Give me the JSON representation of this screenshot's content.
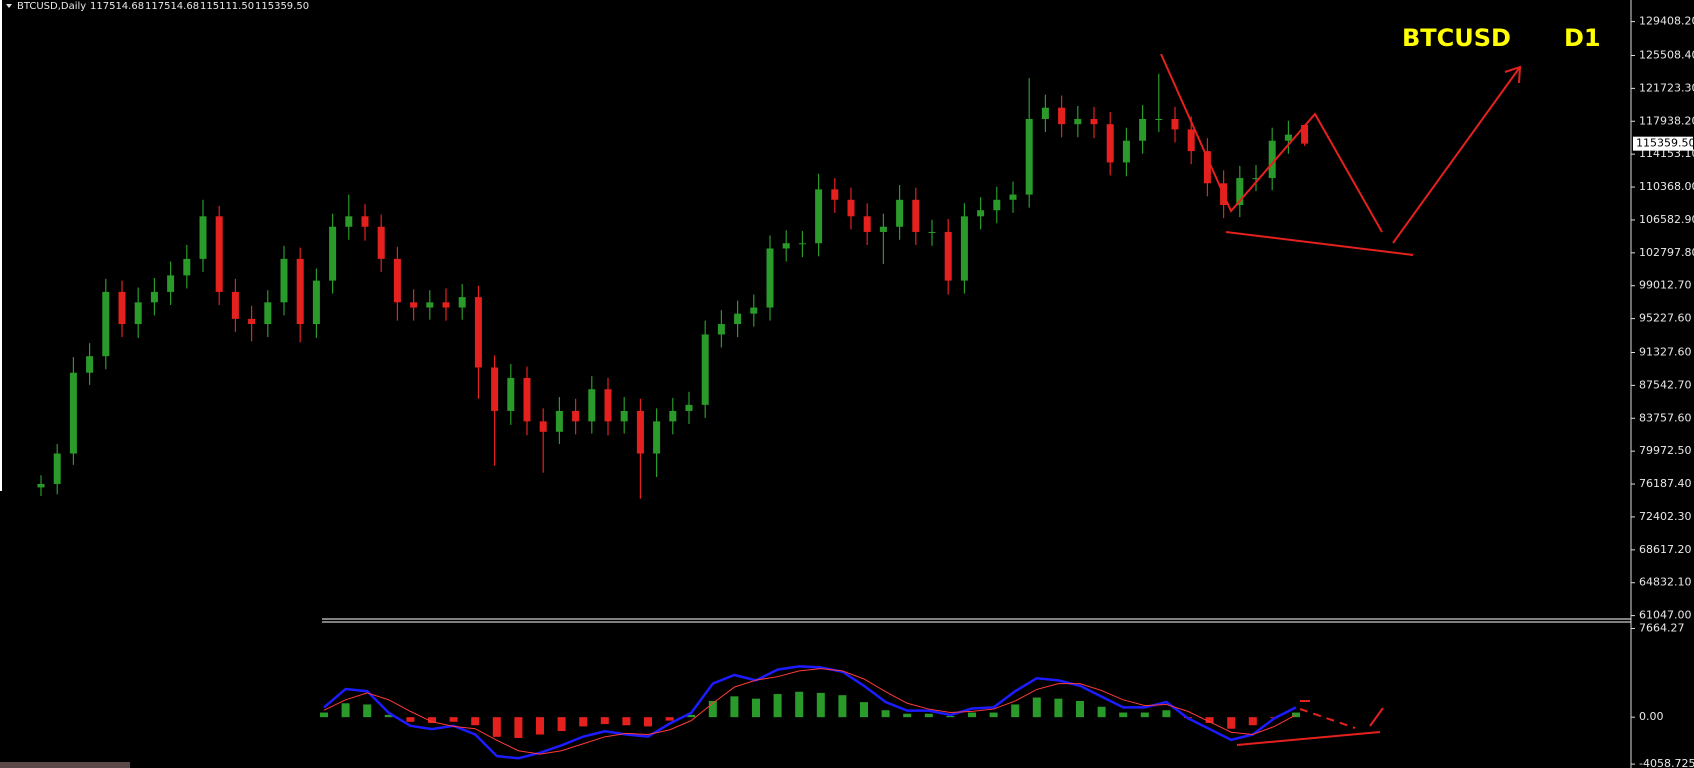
{
  "chart_data": [
    {
      "type": "candlestick",
      "info_bar": {
        "symbol": "BTCUSD,Daily",
        "ohlc": [
          "117514.68",
          "117514.68",
          "115111.50",
          "115359.50"
        ]
      },
      "annotations": [
        "BTCUSD",
        "D1"
      ],
      "up_color": "#2a9a2a",
      "down_color": "#e4211e",
      "open": [
        75800,
        76200,
        79700,
        89000,
        90900,
        98300,
        94600,
        97100,
        98300,
        100200,
        102100,
        107000,
        98300,
        95200,
        94600,
        97100,
        102100,
        94600,
        99600,
        105800,
        107000,
        105800,
        102100,
        97100,
        96500,
        97100,
        96500,
        97700,
        89600,
        84600,
        88400,
        83400,
        82200,
        84600,
        83400,
        87100,
        83400,
        84600,
        79700,
        83400,
        84600,
        85300,
        93400,
        94600,
        95800,
        96500,
        103300,
        103900,
        103900,
        110100,
        108900,
        107000,
        105200,
        105800,
        108900,
        105200,
        105200,
        99600,
        107000,
        107700,
        108900,
        109500,
        118200,
        119500,
        117600,
        118200,
        117600,
        113200,
        115700,
        118200,
        118200,
        117000,
        114500,
        110800,
        108300,
        111400,
        111400,
        115700,
        117514.68
      ],
      "high": [
        77200,
        80800,
        90800,
        92400,
        99800,
        99600,
        98800,
        99900,
        101800,
        103700,
        108900,
        108200,
        99800,
        96700,
        98500,
        103600,
        103400,
        101000,
        107300,
        109500,
        108400,
        107200,
        103500,
        98600,
        98500,
        98700,
        99200,
        99000,
        91000,
        90000,
        89700,
        84900,
        86200,
        86000,
        88600,
        88400,
        86200,
        86000,
        84900,
        86100,
        86800,
        95000,
        96200,
        97300,
        98000,
        104800,
        105400,
        105300,
        111900,
        111400,
        110300,
        108500,
        107300,
        110600,
        110300,
        106600,
        106700,
        108500,
        109200,
        110400,
        111000,
        122900,
        121000,
        120900,
        119700,
        119600,
        119000,
        117200,
        119800,
        123400,
        119600,
        118500,
        116000,
        112300,
        112800,
        112900,
        117200,
        118000,
        117514.68
      ],
      "low": [
        74800,
        75000,
        78400,
        87600,
        89400,
        93100,
        93000,
        95600,
        96800,
        98700,
        100600,
        96800,
        93700,
        92600,
        93100,
        95600,
        92500,
        93000,
        98100,
        104300,
        104200,
        100600,
        95000,
        95000,
        95100,
        95000,
        95100,
        86000,
        78300,
        83000,
        81800,
        77500,
        80800,
        81900,
        82000,
        81800,
        82000,
        74500,
        77000,
        81900,
        83100,
        83800,
        91900,
        93100,
        94300,
        95000,
        101800,
        102300,
        102400,
        107400,
        105500,
        103700,
        101500,
        104300,
        103700,
        103600,
        98000,
        98100,
        105500,
        106200,
        107400,
        108000,
        116700,
        116100,
        116100,
        116000,
        111700,
        111600,
        114200,
        116700,
        115500,
        113000,
        109300,
        106800,
        106900,
        109900,
        110000,
        114200,
        115111.5
      ],
      "close": [
        76200,
        79700,
        89000,
        90900,
        98300,
        94600,
        97100,
        98300,
        100200,
        102100,
        107000,
        98300,
        95200,
        94600,
        97100,
        102100,
        94600,
        99600,
        105800,
        107000,
        105800,
        102100,
        97100,
        96500,
        97100,
        96500,
        97700,
        89600,
        84600,
        88400,
        83400,
        82200,
        84600,
        83400,
        87100,
        83400,
        84600,
        79700,
        83400,
        84600,
        85300,
        93400,
        94600,
        95800,
        96500,
        103300,
        103900,
        103900,
        110100,
        108900,
        107000,
        105200,
        105800,
        108900,
        105200,
        105200,
        99600,
        107000,
        107700,
        108900,
        109500,
        118200,
        119500,
        117600,
        118200,
        117600,
        113200,
        115700,
        118200,
        118200,
        117000,
        114500,
        110800,
        108300,
        111400,
        111400,
        115700,
        116400,
        115359.5
      ],
      "last_price": {
        "value": 115359.5,
        "label": "115359.50"
      },
      "ylim": [
        60426,
        131894
      ],
      "yticks": [
        {
          "value": 129408.2,
          "label": "129408.20"
        },
        {
          "value": 125508.4,
          "label": "125508.40"
        },
        {
          "value": 121723.3,
          "label": "121723.30"
        },
        {
          "value": 117938.2,
          "label": "117938.20"
        },
        {
          "value": 114153.1,
          "label": "114153.10"
        },
        {
          "value": 110368,
          "label": "110368.00"
        },
        {
          "value": 106582.9,
          "label": "106582.90"
        },
        {
          "value": 102797.8,
          "label": "102797.80"
        },
        {
          "value": 99012.7,
          "label": "99012.70"
        },
        {
          "value": 95227.6,
          "label": "95227.60"
        },
        {
          "value": 91327.6,
          "label": "91327.60"
        },
        {
          "value": 87542.7,
          "label": "87542.70"
        },
        {
          "value": 83757.6,
          "label": "83757.60"
        },
        {
          "value": 79972.5,
          "label": "79972.50"
        },
        {
          "value": 76187.4,
          "label": "76187.40"
        },
        {
          "value": 72402.3,
          "label": "72402.30"
        },
        {
          "value": 68617.2,
          "label": "68617.20"
        },
        {
          "value": 64832.1,
          "label": "64832.10"
        },
        {
          "value": 61047,
          "label": "61047.00"
        }
      ]
    },
    {
      "type": "macd",
      "histogram": [
        400,
        1200,
        1100,
        200,
        -400,
        -500,
        -400,
        -700,
        -1700,
        -1800,
        -1500,
        -1200,
        -800,
        -600,
        -700,
        -800,
        -300,
        200,
        1400,
        1800,
        1600,
        2000,
        2200,
        2100,
        1900,
        1300,
        600,
        300,
        300,
        100,
        400,
        400,
        1100,
        1700,
        1600,
        1400,
        900,
        400,
        400,
        600,
        -50,
        -500,
        -1000,
        -700,
        -50,
        400
      ],
      "hist_up_color": "#2a9a2a",
      "hist_down_color": "#e4211e",
      "series": [
        {
          "color": "#1c1cff",
          "values": [
            842,
            2431,
            2244,
            374,
            -748,
            -1029,
            -748,
            -1496,
            -3366,
            -3553,
            -3086,
            -2431,
            -1683,
            -1216,
            -1496,
            -1683,
            -561,
            374,
            2899,
            3647,
            3179,
            4114,
            4395,
            4301,
            3927,
            2712,
            1309,
            561,
            561,
            187,
            748,
            842,
            2244,
            3366,
            3179,
            2712,
            1777,
            842,
            842,
            1309,
            -94,
            -1029,
            -1964,
            -1496,
            -94,
            842
          ]
        },
        {
          "color": "#ff3a3a",
          "values": [
            600,
            1500,
            2100,
            1500,
            500,
            -400,
            -800,
            -1000,
            -2000,
            -2900,
            -3200,
            -2900,
            -2300,
            -1700,
            -1400,
            -1500,
            -1100,
            -300,
            1200,
            2600,
            3200,
            3500,
            4000,
            4200,
            4000,
            3300,
            2200,
            1200,
            700,
            400,
            500,
            700,
            1400,
            2400,
            2900,
            2900,
            2300,
            1500,
            1000,
            1100,
            500,
            -400,
            -1300,
            -1500,
            -800,
            200
          ]
        }
      ],
      "ylim": [
        -4395,
        8228
      ],
      "yticks": [
        7664.27,
        {
          "value": 0,
          "label": "0.00"
        },
        -4058.725
      ]
    }
  ]
}
